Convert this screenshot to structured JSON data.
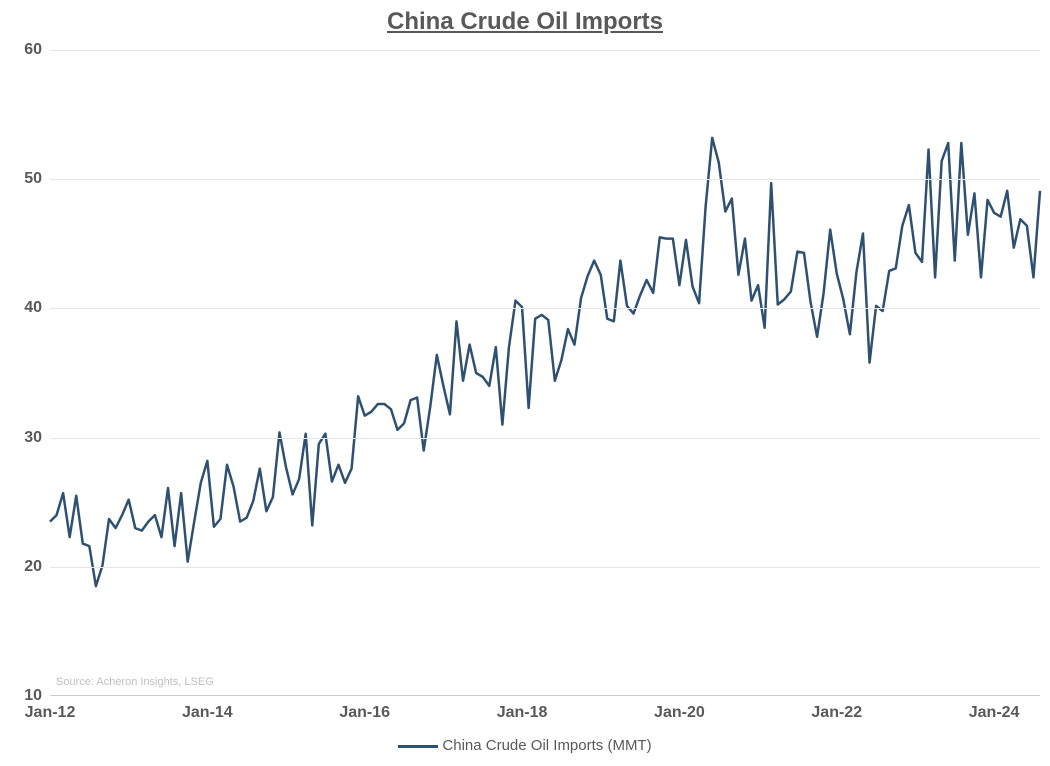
{
  "chart": {
    "type": "line",
    "title": "China Crude Oil Imports",
    "title_fontsize": 24,
    "title_color": "#595959",
    "background_color": "#ffffff",
    "grid_color": "#e6e6e6",
    "axis_line_color": "#cccccc",
    "line_color": "#2f5171",
    "line_width": 2.5,
    "source_text": "Source: Acheron Insights, LSEG",
    "source_color": "#bfbfbf",
    "source_fontsize": 11,
    "legend_label": "China Crude Oil Imports (MMT)",
    "legend_fontsize": 15,
    "legend_color": "#595959",
    "ylim": [
      10,
      60
    ],
    "ytick_step": 10,
    "yticks": [
      10,
      20,
      30,
      40,
      50,
      60
    ],
    "xticks": [
      "Jan-12",
      "Jan-14",
      "Jan-16",
      "Jan-18",
      "Jan-20",
      "Jan-22",
      "Jan-24"
    ],
    "xtick_positions": [
      0,
      24,
      48,
      72,
      96,
      120,
      144
    ],
    "x_count": 152,
    "axis_label_fontsize": 16,
    "axis_label_color": "#595959",
    "values": [
      23.5,
      24.0,
      25.7,
      22.3,
      25.5,
      21.8,
      21.6,
      18.5,
      20.1,
      23.7,
      23.0,
      24.0,
      25.2,
      23.0,
      22.8,
      23.5,
      24.0,
      22.3,
      26.1,
      21.6,
      25.7,
      20.4,
      23.5,
      26.5,
      28.2,
      23.1,
      23.7,
      27.9,
      26.2,
      23.5,
      23.8,
      25.1,
      27.6,
      24.3,
      25.4,
      30.4,
      27.7,
      25.6,
      26.8,
      30.3,
      23.2,
      29.5,
      30.3,
      26.6,
      27.9,
      26.5,
      27.6,
      33.2,
      31.7,
      32.0,
      32.6,
      32.6,
      32.2,
      30.6,
      31.1,
      32.9,
      33.1,
      29.0,
      32.4,
      36.4,
      34.0,
      31.8,
      39.0,
      34.4,
      37.2,
      35.0,
      34.7,
      34.0,
      37.0,
      31.0,
      37.0,
      40.6,
      40.1,
      32.3,
      39.2,
      39.5,
      39.1,
      34.4,
      36.0,
      38.4,
      37.2,
      40.8,
      42.5,
      43.7,
      42.6,
      39.2,
      39.0,
      43.7,
      40.2,
      39.6,
      41.0,
      42.2,
      41.2,
      45.5,
      45.4,
      45.4,
      41.8,
      45.3,
      41.7,
      40.4,
      47.9,
      53.2,
      51.3,
      47.5,
      48.5,
      42.6,
      45.4,
      40.6,
      41.8,
      38.5,
      49.7,
      40.3,
      40.7,
      41.3,
      44.4,
      44.3,
      40.5,
      37.8,
      41.2,
      46.1,
      42.7,
      40.7,
      38.0,
      42.8,
      45.8,
      35.8,
      40.2,
      39.8,
      42.9,
      43.1,
      46.4,
      48.0,
      44.3,
      43.6,
      52.3,
      42.4,
      51.4,
      52.8,
      43.7,
      52.8,
      45.7,
      48.9,
      42.4,
      48.4,
      47.4,
      47.1,
      49.1,
      44.7,
      46.9,
      46.4,
      42.4,
      49.1
    ]
  }
}
